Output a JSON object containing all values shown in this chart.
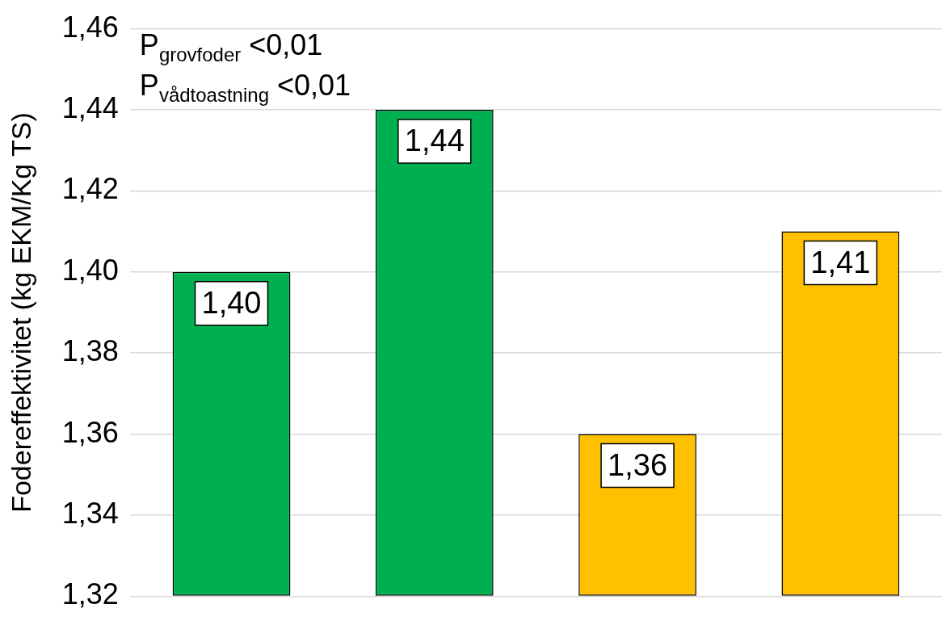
{
  "chart_data": {
    "type": "bar",
    "ylabel": "Fodereffektivitet (kg EKM/Kg TS)",
    "categories": [
      null,
      null,
      null,
      null
    ],
    "values": [
      1.4,
      1.44,
      1.36,
      1.41
    ],
    "colors": [
      "#00b050",
      "#00b050",
      "#ffc000",
      "#ffc000"
    ],
    "value_labels": [
      "1,40",
      "1,44",
      "1,36",
      "1,41"
    ],
    "ylim": [
      1.32,
      1.46
    ],
    "yticks": [
      {
        "value": 1.32,
        "label": "1,32"
      },
      {
        "value": 1.34,
        "label": "1,34"
      },
      {
        "value": 1.36,
        "label": "1,36"
      },
      {
        "value": 1.38,
        "label": "1,38"
      },
      {
        "value": 1.4,
        "label": "1,40"
      },
      {
        "value": 1.42,
        "label": "1,42"
      },
      {
        "value": 1.44,
        "label": "1,44"
      },
      {
        "value": 1.46,
        "label": "1,46"
      }
    ],
    "grid": "y",
    "annotations": [
      "P$_{grovfoder}$ <0,01",
      "P$_{vådtoastning}$ <0,01"
    ]
  }
}
